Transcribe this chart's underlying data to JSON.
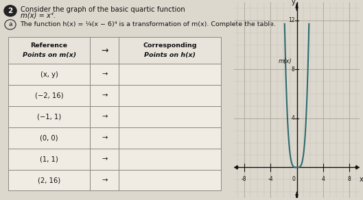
{
  "bg_color": "#ddd8ce",
  "title_number": "2",
  "title_text": "Consider the graph of the basic quartic function m(x) = x⁴.",
  "subtitle_letter": "a",
  "subtitle_text": "The function h(x) = ¼(x − 6)⁴ is a transformation of m(x). Complete the table.",
  "col1_header": "Reference\nPoints on m(x)",
  "col2_header": "→",
  "col3_header": "Corresponding\nPoints on h(x)",
  "rows": [
    [
      "(x, y)",
      "→",
      ""
    ],
    [
      "(−2, 16)",
      "→",
      ""
    ],
    [
      "(−1, 1)",
      "→",
      ""
    ],
    [
      "(0, 0)",
      "→",
      ""
    ],
    [
      "(1, 1)",
      "→",
      ""
    ],
    [
      "(2, 16)",
      "→",
      ""
    ]
  ],
  "curve_color": "#2e6b6e",
  "grid_light": "#c8c3bb",
  "grid_dark": "#b0a898",
  "axis_color": "#111111",
  "x_axis_labels": [
    -8,
    -4,
    4,
    8
  ],
  "y_axis_labels": [
    4,
    8,
    12
  ],
  "x_label": "x",
  "y_label": "y",
  "func_label": "m(x)",
  "table_bg": "#f0ece4",
  "header_bg": "#e8e4dc",
  "border_color": "#888880"
}
